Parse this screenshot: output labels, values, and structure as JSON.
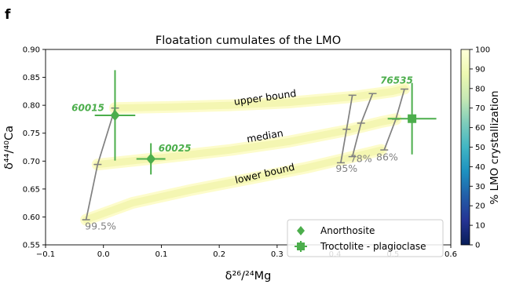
{
  "panel_label": "f",
  "chart_data": {
    "type": "scatter",
    "title": "Floatation cumulates of the LMO",
    "xlabel": "δ²⁶/²⁴Mg",
    "ylabel": "δ⁴⁴/⁴⁰Ca",
    "xlim": [
      -0.1,
      0.6
    ],
    "ylim": [
      0.55,
      0.9
    ],
    "xticks": [
      -0.1,
      0.0,
      0.1,
      0.2,
      0.3,
      0.4,
      0.5,
      0.6
    ],
    "xtick_labels": [
      "−0.1",
      "0.0",
      "0.1",
      "0.2",
      "0.3",
      "0.4",
      "0.5",
      "0.6"
    ],
    "yticks": [
      0.55,
      0.6,
      0.65,
      0.7,
      0.75,
      0.8,
      0.85,
      0.9
    ],
    "ytick_labels": [
      "0.55",
      "0.60",
      "0.65",
      "0.70",
      "0.75",
      "0.80",
      "0.85",
      "0.90"
    ],
    "colorbar": {
      "label": "% LMO crystallization",
      "range": [
        0,
        100
      ],
      "ticks": [
        "0",
        "10",
        "20",
        "30",
        "40",
        "50",
        "60",
        "70",
        "80",
        "90",
        "100"
      ]
    },
    "bands": [
      {
        "label": "upper bound",
        "label_at": [
          0.28,
          0.808
        ],
        "angle": -8,
        "points": [
          [
            0.02,
            0.795
          ],
          [
            0.12,
            0.797
          ],
          [
            0.22,
            0.8
          ],
          [
            0.32,
            0.805
          ],
          [
            0.43,
            0.815
          ],
          [
            0.5,
            0.825
          ],
          [
            0.52,
            0.83
          ]
        ]
      },
      {
        "label": "median",
        "label_at": [
          0.28,
          0.739
        ],
        "angle": -10,
        "points": [
          [
            -0.01,
            0.694
          ],
          [
            0.1,
            0.706
          ],
          [
            0.22,
            0.72
          ],
          [
            0.32,
            0.735
          ],
          [
            0.42,
            0.755
          ],
          [
            0.48,
            0.77
          ],
          [
            0.505,
            0.775
          ]
        ]
      },
      {
        "label": "lower bound",
        "label_at": [
          0.28,
          0.672
        ],
        "angle": -13,
        "points": [
          [
            -0.03,
            0.595
          ],
          [
            0.05,
            0.625
          ],
          [
            0.15,
            0.648
          ],
          [
            0.25,
            0.668
          ],
          [
            0.35,
            0.688
          ],
          [
            0.42,
            0.705
          ],
          [
            0.48,
            0.72
          ]
        ]
      }
    ],
    "crystallization_lines": [
      {
        "label": "99.5%",
        "label_at": [
          -0.005,
          0.583
        ],
        "points": [
          [
            0.02,
            0.795
          ],
          [
            -0.01,
            0.694
          ],
          [
            -0.03,
            0.595
          ]
        ]
      },
      {
        "label": "95%",
        "label_at": [
          0.42,
          0.686
        ],
        "points": [
          [
            0.43,
            0.818
          ],
          [
            0.42,
            0.757
          ],
          [
            0.41,
            0.697
          ]
        ]
      },
      {
        "label": "78%",
        "label_at": [
          0.445,
          0.704
        ],
        "points": [
          [
            0.465,
            0.821
          ],
          [
            0.445,
            0.768
          ],
          [
            0.43,
            0.708
          ]
        ]
      },
      {
        "label": "86%",
        "label_at": [
          0.49,
          0.707
        ],
        "points": [
          [
            0.52,
            0.829
          ],
          [
            0.505,
            0.775
          ],
          [
            0.485,
            0.72
          ]
        ]
      }
    ],
    "series": [
      {
        "name": "Anorthosite",
        "marker": "diamond",
        "color": "#4cae4c",
        "points": [
          {
            "label": "60015",
            "x": 0.02,
            "y": 0.782,
            "xerr": 0.035,
            "yerr": 0.081,
            "label_at": [
              -0.055,
              0.79
            ]
          },
          {
            "label": "60025",
            "x": 0.082,
            "y": 0.704,
            "xerr": 0.025,
            "yerr": 0.028,
            "label_at": [
              0.095,
              0.717
            ]
          }
        ]
      },
      {
        "name": "Troctolite - plagioclase",
        "marker": "square",
        "color": "#4cae4c",
        "points": [
          {
            "label": "76535",
            "x": 0.533,
            "y": 0.776,
            "xerr": 0.042,
            "yerr": 0.064,
            "label_at": [
              0.478,
              0.839
            ]
          }
        ]
      }
    ],
    "legend": {
      "placement": "lower-right"
    }
  }
}
